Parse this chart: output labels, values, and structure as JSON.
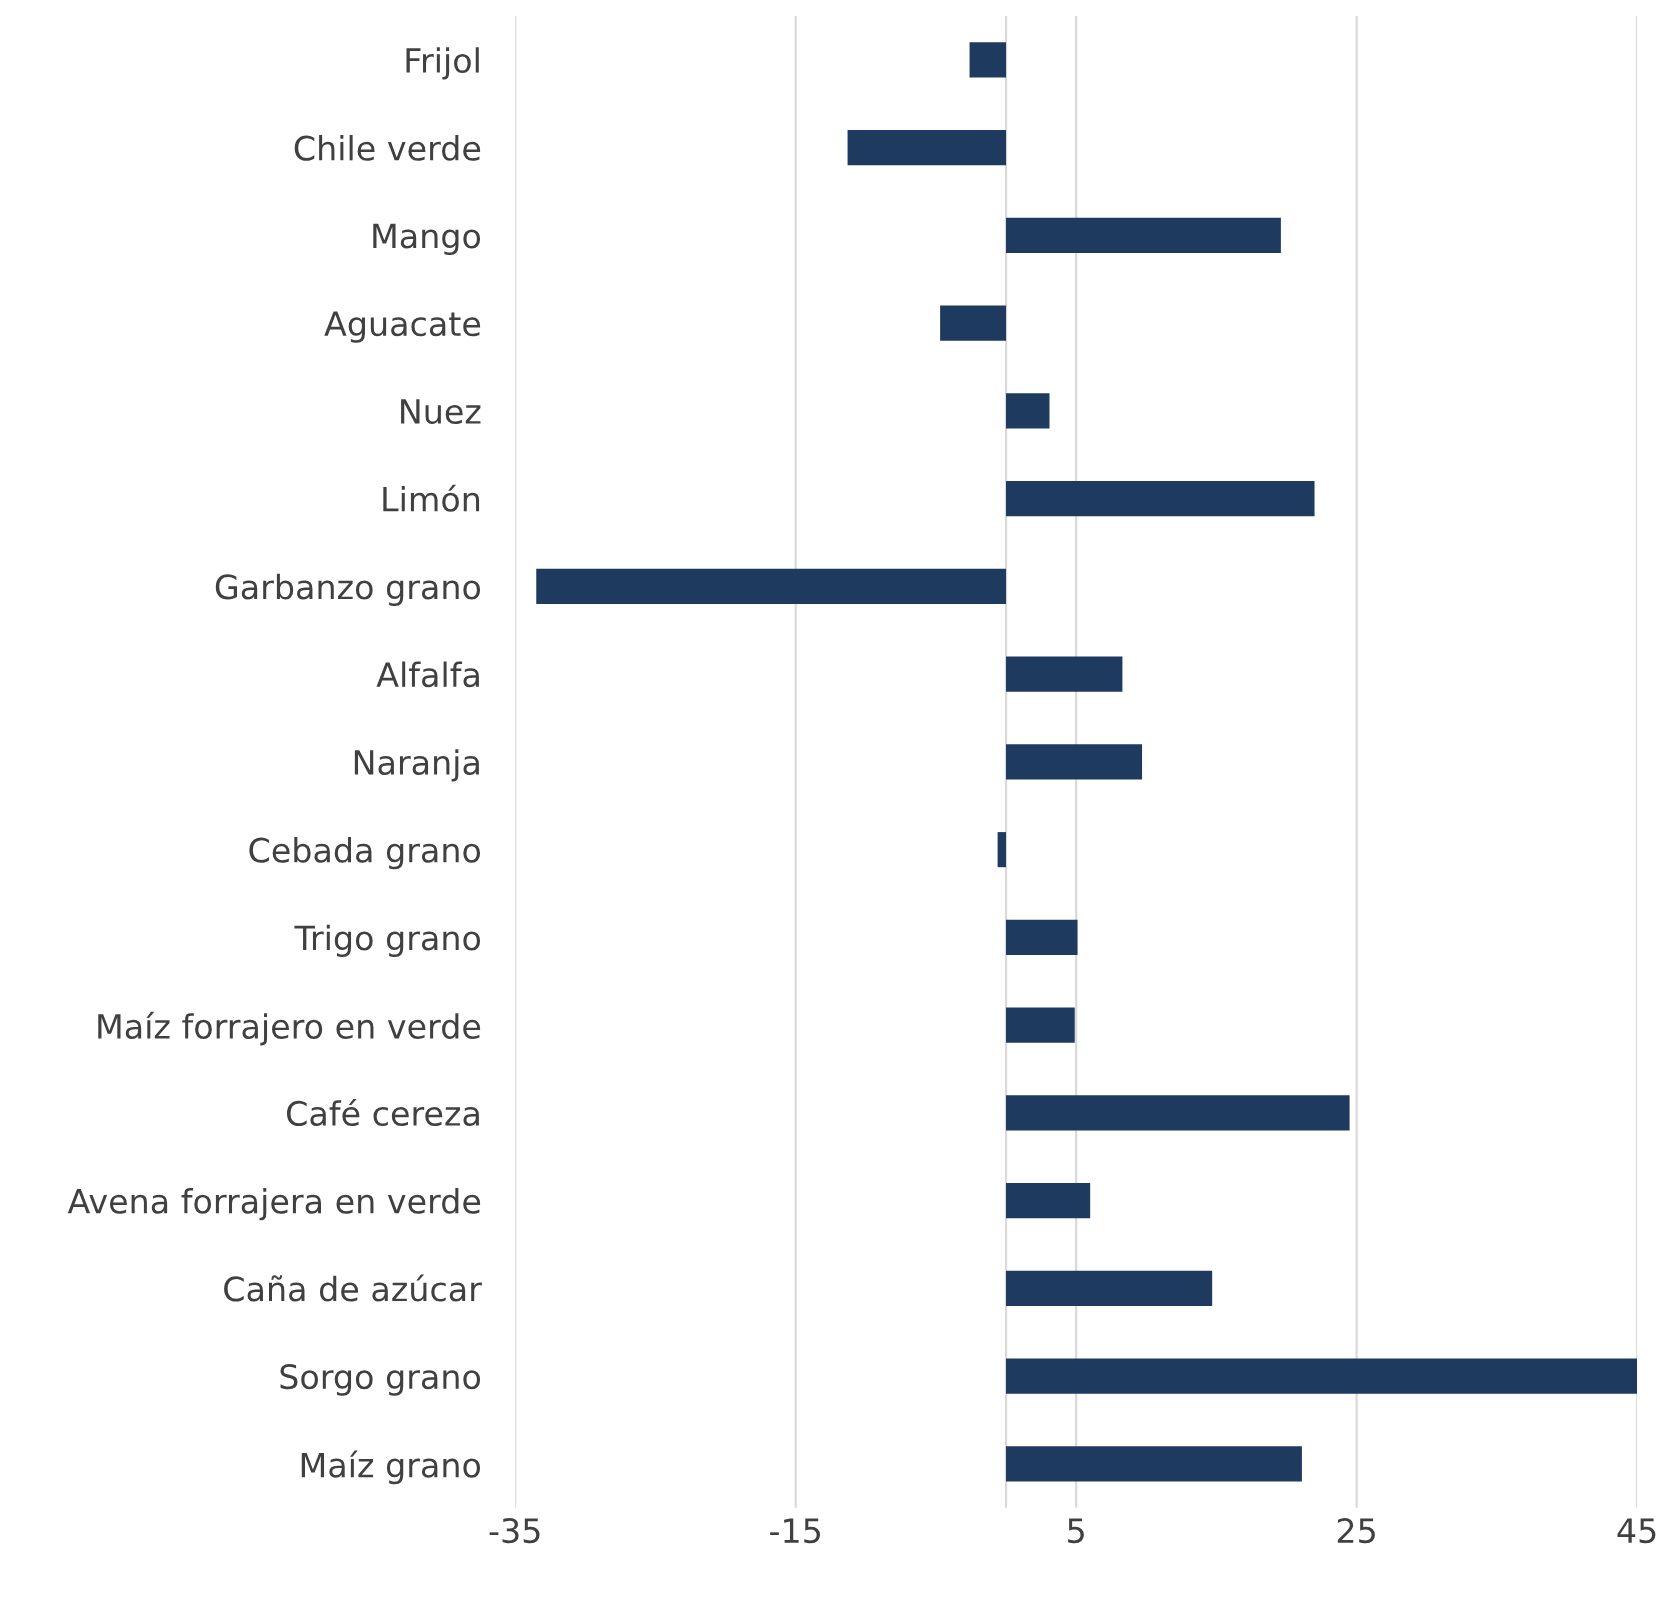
{
  "chart_data": {
    "type": "bar",
    "orientation": "horizontal",
    "categories": [
      "Frijol",
      "Chile verde",
      "Mango",
      "Aguacate",
      "Nuez",
      "Limón",
      "Garbanzo grano",
      "Alfalfa",
      "Naranja",
      "Cebada grano",
      "Trigo grano",
      "Maíz forrajero en verde",
      "Café cereza",
      "Avena forrajera en verde",
      "Caña de azúcar",
      "Sorgo grano",
      "Maíz grano"
    ],
    "values": [
      -2.6,
      -11.3,
      19.6,
      -4.7,
      3.1,
      22.0,
      -33.5,
      8.3,
      9.7,
      -0.6,
      5.1,
      4.9,
      24.5,
      6.0,
      14.7,
      45.0,
      21.1
    ],
    "color": "#1f3a5f",
    "xlim": [
      -35,
      45
    ],
    "xticks": [
      -35,
      -15,
      5,
      25,
      45
    ],
    "grid": "x"
  }
}
